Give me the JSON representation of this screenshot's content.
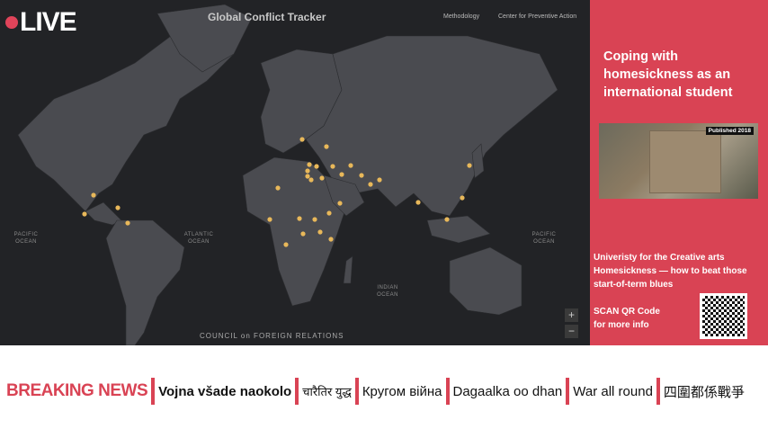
{
  "live": {
    "label": "LIVE"
  },
  "map": {
    "title": "Global Conflict Tracker",
    "links": [
      "Methodology",
      "Center for Preventive Action"
    ],
    "oceans": [
      "PACIFIC OCEAN",
      "ATLANTIC OCEAN",
      "INDIAN OCEAN",
      "PACIFIC OCEAN"
    ],
    "credit": "COUNCIL on FOREIGN RELATIONS",
    "zoom_in": "+",
    "zoom_out": "−",
    "colors": {
      "background": "#222326",
      "land": "#4a4b50",
      "conflict_dot": "#e8b85a"
    }
  },
  "panel": {
    "title": "Coping with homesickness as an international student",
    "image_badge": "Published 2018",
    "subtitle_lines": [
      "Univeristy for the Creative arts",
      "Homesickness — how to beat those",
      "start-of-term blues"
    ],
    "scan_lines": [
      "SCAN QR Code",
      "for more info"
    ],
    "color": "#d94354"
  },
  "ticker": {
    "label": "BREAKING NEWS",
    "items": [
      "Vojna všade naokolo",
      "चारैतिर युद्ध",
      "Кругом війна",
      "Dagaalka oo dhan",
      "War all round",
      "四圍都係戰爭"
    ]
  }
}
